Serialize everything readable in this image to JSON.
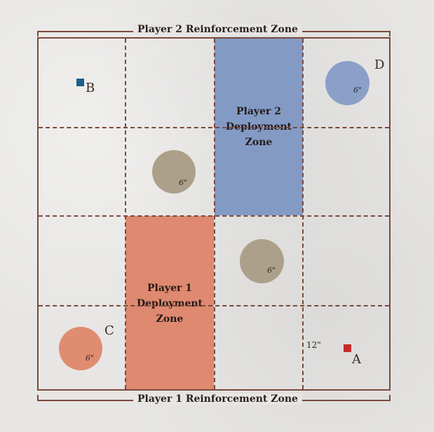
{
  "reinforcement_zones": {
    "top": "Player 2 Reinforcement Zone",
    "bottom": "Player 1 Reinforcement Zone"
  },
  "deployment_zones": {
    "player2": "Player 2\nDeployment\nZone",
    "player1": "Player 1\nDeployment\nZone"
  },
  "objectives": {
    "A": "A",
    "B": "B",
    "C": "C",
    "D": "D"
  },
  "terrain_labels": {
    "center_upper": "6\"",
    "center_lower": "6\"",
    "circle_c": "6\"",
    "circle_d": "6\""
  },
  "measurement": "12\"",
  "colors": {
    "grid_line": "#7a4a3c",
    "player1_zone": "#dd8469",
    "player2_zone": "#7d96c3",
    "terrain_circle": "#ada08a",
    "circle_c": "#e08c70",
    "circle_d": "#8aa0c8",
    "marker_a": "#c62b2b",
    "marker_b": "#1f5e8c"
  }
}
